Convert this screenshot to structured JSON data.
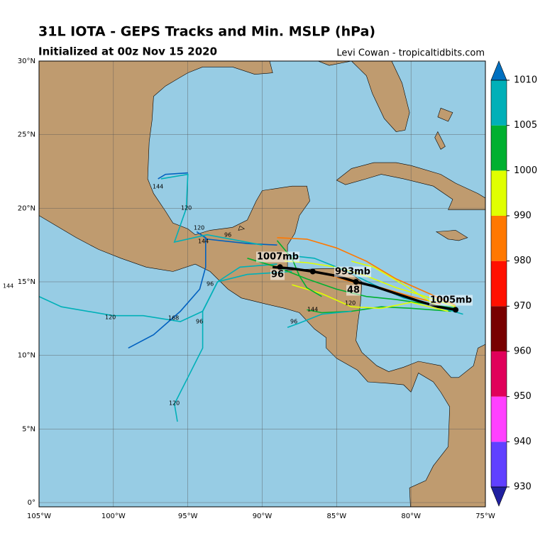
{
  "header": {
    "title": "31L IOTA - GEPS Tracks and Min. MSLP (hPa)",
    "subtitle": "Initialized at 00z Nov 15 2020",
    "credit": "Levi Cowan - tropicaltidbits.com"
  },
  "map": {
    "lon_ticks": [
      {
        "value": -105,
        "label": "105°W"
      },
      {
        "value": -100,
        "label": "100°W"
      },
      {
        "value": -95,
        "label": "95°W"
      },
      {
        "value": -90,
        "label": "90°W"
      },
      {
        "value": -85,
        "label": "85°W"
      },
      {
        "value": -80,
        "label": "80°W"
      },
      {
        "value": -75,
        "label": "75°W"
      }
    ],
    "lat_ticks": [
      {
        "value": 0,
        "label": "0°"
      },
      {
        "value": 5,
        "label": "5°N"
      },
      {
        "value": 10,
        "label": "10°N"
      },
      {
        "value": 15,
        "label": "15°N"
      },
      {
        "value": 20,
        "label": "20°N"
      },
      {
        "value": 25,
        "label": "25°N"
      },
      {
        "value": 30,
        "label": "30°N"
      }
    ],
    "annotations": [
      "1007mb",
      "993mb",
      "1005mb",
      "96",
      "48"
    ],
    "hour_labels": [
      "144",
      "120",
      "120",
      "144",
      "96",
      "96",
      "120",
      "168",
      "96",
      "120",
      "96",
      "144",
      "120",
      "144"
    ]
  },
  "colorbar": {
    "levels": [
      930,
      940,
      950,
      960,
      970,
      980,
      990,
      1000,
      1005,
      1010
    ],
    "colors": [
      "#6040ff",
      "#ff40ff",
      "#e0005a",
      "#780000",
      "#ff1000",
      "#ff7800",
      "#e0ff00",
      "#00b030",
      "#00b0b8"
    ]
  }
}
